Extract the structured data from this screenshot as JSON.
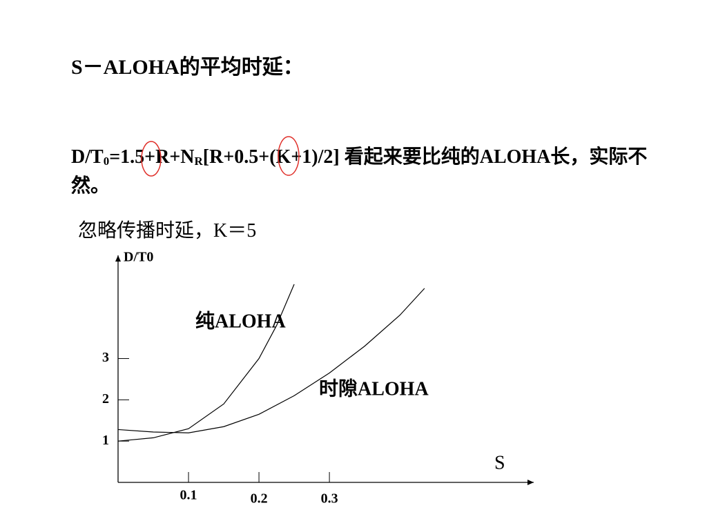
{
  "title": "S－ALOHA的平均时延：",
  "formula": [
    "D/T",
    "0",
    "=1.5+R+N",
    "R",
    "[R+0.5+(K+1)/2]  看起来要比纯的ALOHA长，实际不然。"
  ],
  "note": "忽略传播时延，K＝5",
  "chart_data": {
    "type": "line",
    "y_label": "D/T0",
    "x_label": "S",
    "xlim": [
      0,
      0.59
    ],
    "ylim": [
      0,
      5.5
    ],
    "xticks": [
      0.1,
      0.2,
      0.3
    ],
    "yticks": [
      1,
      2,
      3
    ],
    "series": [
      {
        "name": "纯ALOHA",
        "color": "#000000",
        "x": [
          0,
          0.05,
          0.1,
          0.15,
          0.2,
          0.225,
          0.25
        ],
        "values": [
          1,
          1.08,
          1.3,
          1.9,
          3,
          3.8,
          4.8
        ]
      },
      {
        "name": "时隙ALOHA",
        "color": "#000000",
        "x": [
          0,
          0.05,
          0.1,
          0.15,
          0.2,
          0.25,
          0.3,
          0.35,
          0.4,
          0.435
        ],
        "values": [
          1.28,
          1.22,
          1.2,
          1.35,
          1.65,
          2.1,
          2.65,
          3.3,
          4.05,
          4.7
        ]
      }
    ]
  }
}
